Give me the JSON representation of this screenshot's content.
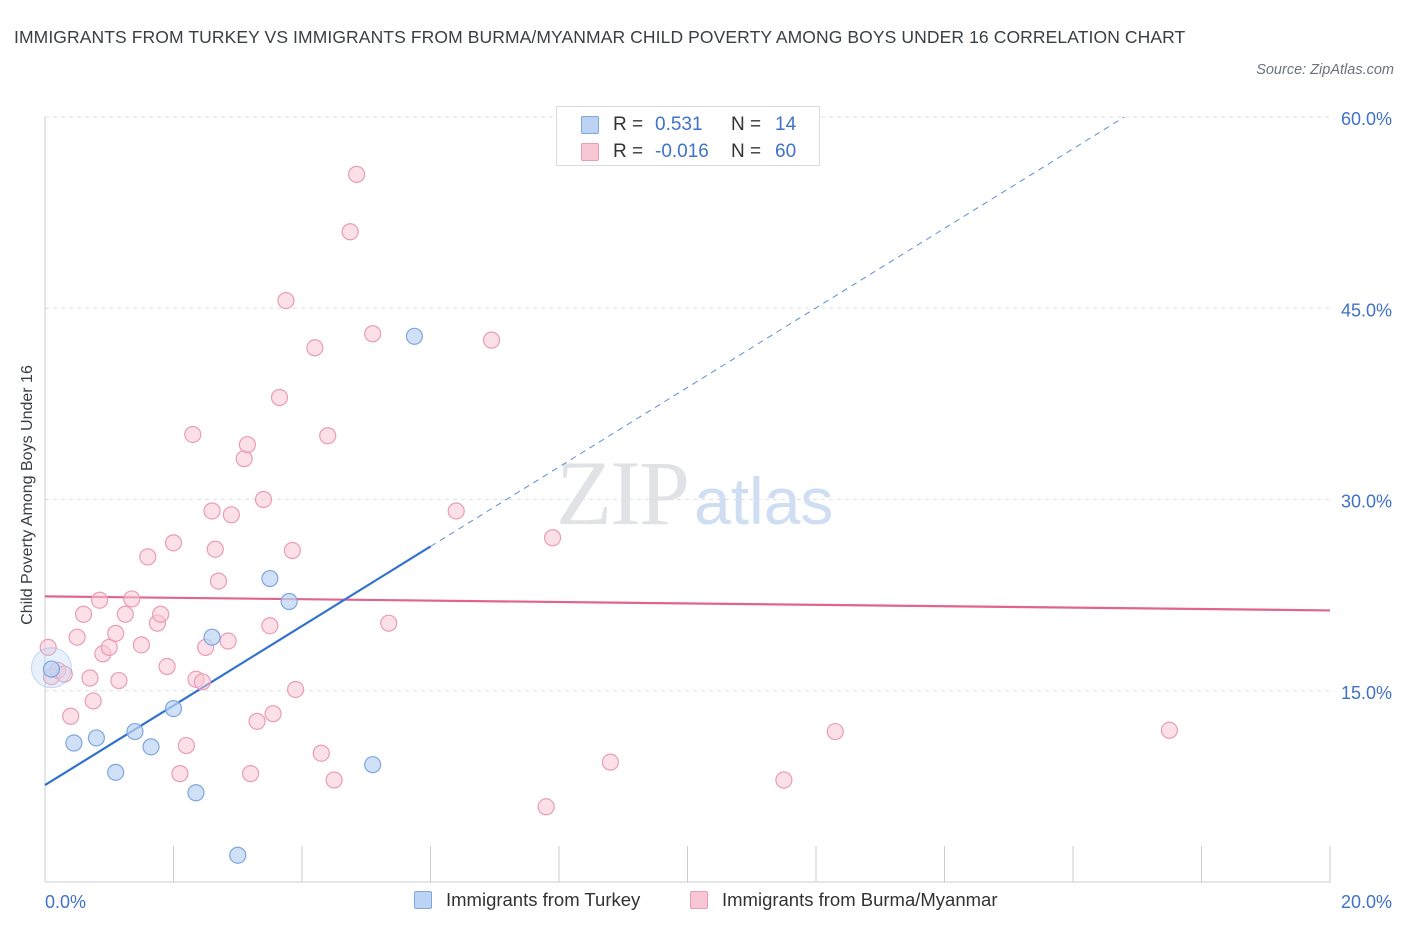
{
  "header": {
    "title": "IMMIGRANTS FROM TURKEY VS IMMIGRANTS FROM BURMA/MYANMAR CHILD POVERTY AMONG BOYS UNDER 16 CORRELATION CHART",
    "source": "Source: ZipAtlas.com"
  },
  "watermark": {
    "zip": "ZIP",
    "atlas": "atlas"
  },
  "stats": [
    {
      "r_label": "R =",
      "r_value": "0.531",
      "n_label": "N =",
      "n_value": "14"
    },
    {
      "r_label": "R =",
      "r_value": "-0.016",
      "n_label": "N =",
      "n_value": "60"
    }
  ],
  "colors": {
    "turkey_fill": "#bcd3f3",
    "turkey_stroke": "#7ea7de",
    "turkey_line": "#3272cc",
    "burma_fill": "#f8c6d5",
    "burma_stroke": "#eb9cb5",
    "burma_line": "#e0648e",
    "tick_text": "#3f72c8",
    "grid": "#dde1e6"
  },
  "chart_data": {
    "type": "scatter",
    "title": "IMMIGRANTS FROM TURKEY VS IMMIGRANTS FROM BURMA/MYANMAR CHILD POVERTY AMONG BOYS UNDER 16 CORRELATION CHART",
    "xlabel": "",
    "ylabel": "Child Poverty Among Boys Under 16",
    "xlim": [
      0,
      20
    ],
    "ylim": [
      0,
      60
    ],
    "x_tick_labels": [
      "0.0%",
      "20.0%"
    ],
    "x_tick_values": [
      0,
      20
    ],
    "y_tick_labels": [
      "15.0%",
      "30.0%",
      "45.0%",
      "60.0%"
    ],
    "y_tick_values": [
      15,
      30,
      45,
      60
    ],
    "grid": true,
    "legend_position": "bottom",
    "series": [
      {
        "name": "Immigrants from Turkey",
        "r": 0.531,
        "n": 14,
        "points": [
          [
            0.1,
            16.7
          ],
          [
            0.45,
            10.9
          ],
          [
            0.8,
            11.3
          ],
          [
            1.1,
            8.6
          ],
          [
            1.4,
            11.8
          ],
          [
            1.65,
            10.6
          ],
          [
            2.0,
            13.6
          ],
          [
            2.35,
            7.0
          ],
          [
            2.6,
            19.2
          ],
          [
            3.0,
            2.1
          ],
          [
            3.5,
            23.8
          ],
          [
            3.8,
            22.0
          ],
          [
            5.1,
            9.2
          ],
          [
            5.75,
            42.8
          ]
        ],
        "trend": {
          "x0": 0,
          "y0": 7.6,
          "x_solid_end": 6.0,
          "x_dash_end": 16.8,
          "y_dash_end": 60.0
        }
      },
      {
        "name": "Immigrants from Burma/Myanmar",
        "r": -0.016,
        "n": 60,
        "points": [
          [
            0.05,
            18.4
          ],
          [
            0.1,
            16.1
          ],
          [
            0.2,
            16.6
          ],
          [
            0.3,
            16.3
          ],
          [
            0.4,
            13.0
          ],
          [
            0.5,
            19.2
          ],
          [
            0.6,
            21.0
          ],
          [
            0.7,
            16.0
          ],
          [
            0.75,
            14.2
          ],
          [
            0.85,
            22.1
          ],
          [
            0.9,
            17.9
          ],
          [
            1.0,
            18.4
          ],
          [
            1.1,
            19.5
          ],
          [
            1.15,
            15.8
          ],
          [
            1.25,
            21.0
          ],
          [
            1.35,
            22.2
          ],
          [
            1.5,
            18.6
          ],
          [
            1.6,
            25.5
          ],
          [
            1.75,
            20.3
          ],
          [
            1.8,
            21.0
          ],
          [
            1.9,
            16.9
          ],
          [
            2.0,
            26.6
          ],
          [
            2.1,
            8.5
          ],
          [
            2.2,
            10.7
          ],
          [
            2.3,
            35.1
          ],
          [
            2.35,
            15.9
          ],
          [
            2.45,
            15.7
          ],
          [
            2.5,
            18.4
          ],
          [
            2.6,
            29.1
          ],
          [
            2.65,
            26.1
          ],
          [
            2.7,
            23.6
          ],
          [
            2.85,
            18.9
          ],
          [
            2.9,
            28.8
          ],
          [
            3.1,
            33.2
          ],
          [
            3.15,
            34.3
          ],
          [
            3.2,
            8.5
          ],
          [
            3.3,
            12.6
          ],
          [
            3.4,
            30.0
          ],
          [
            3.5,
            20.1
          ],
          [
            3.55,
            13.2
          ],
          [
            3.65,
            38.0
          ],
          [
            3.75,
            45.6
          ],
          [
            3.85,
            26.0
          ],
          [
            3.9,
            15.1
          ],
          [
            4.2,
            41.9
          ],
          [
            4.3,
            10.1
          ],
          [
            4.4,
            35.0
          ],
          [
            4.5,
            8.0
          ],
          [
            4.75,
            51.0
          ],
          [
            4.85,
            55.5
          ],
          [
            5.1,
            43.0
          ],
          [
            5.35,
            20.3
          ],
          [
            6.4,
            29.1
          ],
          [
            6.95,
            42.5
          ],
          [
            7.8,
            5.9
          ],
          [
            7.9,
            27.0
          ],
          [
            8.8,
            9.4
          ],
          [
            11.5,
            8.0
          ],
          [
            12.3,
            11.8
          ],
          [
            17.5,
            11.9
          ]
        ],
        "trend": {
          "x0": 0,
          "y0": 22.4,
          "x1": 20,
          "y1": 21.3
        }
      }
    ]
  }
}
